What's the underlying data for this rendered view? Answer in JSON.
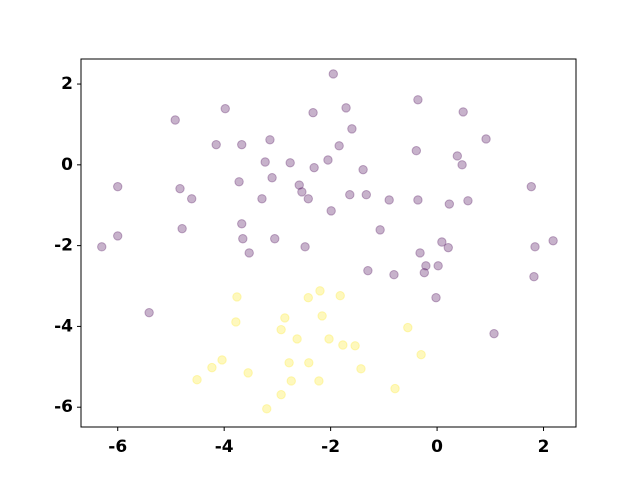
{
  "chart_data": {
    "type": "scatter",
    "xlim": [
      -6.69,
      2.61
    ],
    "ylim": [
      -6.49,
      2.62
    ],
    "xticks": [
      -6,
      -4,
      -2,
      0,
      2
    ],
    "yticks": [
      -6,
      -4,
      -2,
      0,
      2
    ],
    "alpha": 0.3,
    "series": [
      {
        "color": "#440154",
        "x": [
          -1.95,
          -4.92,
          -3.98,
          -1.71,
          -0.36,
          0.49,
          -2.33,
          -4.15,
          -3.67,
          -3.14,
          -1.6,
          -1.84,
          0.92,
          -0.39,
          0.38,
          0.47,
          -3.23,
          -2.76,
          -2.05,
          -2.31,
          -1.39,
          -3.1,
          -6.0,
          -4.83,
          -3.72,
          -2.59,
          -2.54,
          -1.64,
          -1.33,
          -4.61,
          -3.29,
          -2.42,
          -0.9,
          -0.36,
          0.23,
          0.58,
          1.77,
          -1.99,
          -3.67,
          -4.79,
          -1.07,
          -6.0,
          -3.65,
          -3.05,
          0.09,
          2.18,
          -6.3,
          -2.48,
          0.21,
          1.84,
          -3.53,
          -0.32,
          -0.21,
          0.02,
          -1.3,
          -0.81,
          -0.24,
          1.82,
          -0.02,
          -5.41,
          1.07
        ],
        "values": [
          2.25,
          1.11,
          1.39,
          1.41,
          1.61,
          1.31,
          1.29,
          0.5,
          0.5,
          0.62,
          0.89,
          0.47,
          0.64,
          0.35,
          0.22,
          0.0,
          0.07,
          0.05,
          0.12,
          -0.07,
          -0.12,
          -0.32,
          -0.54,
          -0.59,
          -0.42,
          -0.5,
          -0.67,
          -0.74,
          -0.74,
          -0.84,
          -0.84,
          -0.84,
          -0.87,
          -0.87,
          -0.97,
          -0.89,
          -0.54,
          -1.14,
          -1.46,
          -1.58,
          -1.61,
          -1.76,
          -1.83,
          -1.83,
          -1.91,
          -1.88,
          -2.03,
          -2.03,
          -2.05,
          -2.03,
          -2.18,
          -2.18,
          -2.5,
          -2.5,
          -2.62,
          -2.72,
          -2.67,
          -2.77,
          -3.29,
          -3.66,
          -4.18
        ]
      },
      {
        "color": "#fde725",
        "x": [
          -3.76,
          -2.2,
          -1.82,
          -2.42,
          -3.78,
          -2.86,
          -2.16,
          -2.93,
          -0.55,
          -2.63,
          -2.03,
          -1.77,
          -1.54,
          -0.3,
          -4.04,
          -2.78,
          -2.41,
          -4.23,
          -1.43,
          -3.55,
          -4.51,
          -2.74,
          -2.22,
          -0.79,
          -2.93,
          -3.2
        ],
        "values": [
          -3.27,
          -3.12,
          -3.24,
          -3.29,
          -3.89,
          -3.79,
          -3.74,
          -4.08,
          -4.03,
          -4.31,
          -4.31,
          -4.46,
          -4.48,
          -4.7,
          -4.83,
          -4.9,
          -4.9,
          -5.02,
          -5.05,
          -5.15,
          -5.32,
          -5.35,
          -5.35,
          -5.54,
          -5.69,
          -6.04
        ]
      }
    ]
  }
}
